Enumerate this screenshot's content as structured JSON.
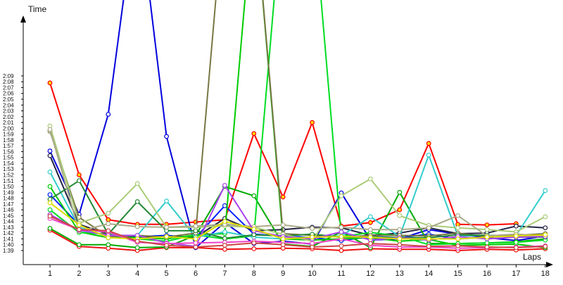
{
  "chart_data": {
    "type": "line",
    "title": "",
    "xlabel": "Laps",
    "ylabel": "Time",
    "x": [
      1,
      2,
      3,
      4,
      5,
      6,
      7,
      8,
      9,
      10,
      11,
      12,
      13,
      14,
      15,
      16,
      17,
      18
    ],
    "x_tick_labels": [
      "1",
      "2",
      "3",
      "4",
      "5",
      "6",
      "7",
      "8",
      "9",
      "10",
      "11",
      "12",
      "13",
      "14",
      "15",
      "16",
      "17",
      "18"
    ],
    "y_unit": "seconds",
    "y_tick_values": [
      99,
      100,
      101,
      102,
      103,
      104,
      105,
      106,
      107,
      108,
      109,
      110,
      111,
      112,
      113,
      114,
      115,
      116,
      117,
      118,
      119,
      120,
      121,
      122,
      123,
      124,
      125,
      126,
      127,
      128,
      129
    ],
    "y_tick_labels": [
      "1:39",
      "1:40",
      "1:41",
      "1:42",
      "1:43",
      "1:44",
      "1:45",
      "1:46",
      "1:47",
      "1:48",
      "1:49",
      "1:50",
      "1:51",
      "1:52",
      "1:53",
      "1:54",
      "1:55",
      "1:56",
      "1:57",
      "1:58",
      "1:59",
      "2:00",
      "2:01",
      "2:02",
      "2:03",
      "2:04",
      "2:05",
      "2:06",
      "2:07",
      "2:08",
      "2:09"
    ],
    "ylim": [
      98,
      133
    ],
    "legend": "none",
    "grid": false,
    "series": [
      {
        "color": "#ff0000",
        "marker": "#ffd700",
        "values": [
          127.8,
          112.0,
          104.3,
          103.5,
          103.5,
          103.9,
          104.3,
          119.1,
          108.2,
          121.0,
          103.2,
          103.8,
          106.0,
          117.4,
          103.5,
          103.4,
          103.6,
          null
        ]
      },
      {
        "color": "#ee1111",
        "marker": "#ffffff",
        "values": [
          102.5,
          99.7,
          99.4,
          99.0,
          99.5,
          99.5,
          99.2,
          99.3,
          99.4,
          99.3,
          99.0,
          99.3,
          99.2,
          99.2,
          99.0,
          99.2,
          99.1,
          99.3
        ]
      },
      {
        "color": "#0000dd",
        "marker": "#ffffff",
        "values": [
          116.1,
          105.2,
          122.4,
          160.0,
          118.6,
          99.5,
          103.8,
          100.2,
          100.6,
          100.1,
          108.9,
          100.8,
          101.0,
          102.6,
          101.8,
          101.2,
          100.7,
          101.5
        ]
      },
      {
        "color": "#0022ff",
        "marker": "#ffffff",
        "values": [
          108.6,
          103.4,
          101.2,
          101.4,
          101.6,
          101.2,
          106.7,
          101.8,
          101.5,
          101.2,
          100.7,
          101.4,
          101.2,
          101.8,
          101.0,
          101.3,
          101.6,
          101.5
        ]
      },
      {
        "color": "#222244",
        "marker": "#ffffff",
        "values": [
          115.3,
          103.5,
          101.8,
          101.2,
          101.4,
          101.3,
          104.5,
          102.4,
          102.6,
          103.0,
          102.9,
          101.6,
          102.0,
          102.9,
          101.9,
          102.0,
          103.2,
          102.9
        ]
      },
      {
        "color": "#00aa00",
        "marker": "#ffffff",
        "values": [
          102.8,
          100.0,
          100.0,
          99.5,
          99.6,
          101.6,
          110.0,
          108.4,
          100.1,
          99.7,
          102.2,
          99.5,
          109.0,
          100.2,
          100.2,
          100.3,
          100.5,
          101.0
        ]
      },
      {
        "color": "#00cc00",
        "marker": "#ffffff",
        "values": [
          110.0,
          102.2,
          101.2,
          101.2,
          101.0,
          101.7,
          101.9,
          160.0,
          101.0,
          100.8,
          101.0,
          101.2,
          100.6,
          100.9,
          99.9,
          100.0,
          100.1,
          99.5
        ]
      },
      {
        "color": "#00dd22",
        "marker": "#ffffff",
        "values": [
          106.0,
          102.1,
          101.8,
          101.0,
          100.6,
          101.7,
          101.0,
          101.5,
          160.0,
          160.0,
          101.4,
          102.1,
          101.5,
          100.0,
          100.2,
          100.3,
          100.4,
          100.8
        ]
      },
      {
        "color": "#33cccc",
        "marker": "#ffffff",
        "values": [
          112.5,
          103.0,
          101.4,
          101.6,
          107.5,
          101.3,
          102.2,
          101.3,
          101.0,
          101.3,
          101.5,
          104.8,
          101.4,
          115.4,
          101.5,
          101.6,
          101.6,
          109.3
        ]
      },
      {
        "color": "#777744",
        "marker": "#ffffff",
        "values": [
          119.5,
          104.7,
          101.4,
          101.6,
          101.3,
          102.0,
          160.0,
          160.0,
          101.9,
          101.6,
          101.3,
          101.6,
          101.6,
          101.5,
          102.0,
          101.4,
          101.6,
          101.9
        ]
      },
      {
        "color": "#228833",
        "marker": "#ffffff",
        "values": [
          107.8,
          111.0,
          101.8,
          107.4,
          102.4,
          102.4,
          101.1,
          101.7,
          101.5,
          101.8,
          101.3,
          101.3,
          101.2,
          101.2,
          101.7,
          101.6,
          101.3,
          101.3
        ]
      },
      {
        "color": "#aacc77",
        "marker": "#ffffff",
        "values": [
          120.4,
          103.7,
          105.4,
          110.5,
          103.0,
          103.0,
          103.2,
          103.0,
          101.8,
          100.6,
          108.4,
          111.3,
          105.0,
          103.3,
          102.9,
          102.6,
          102.2,
          104.8
        ]
      },
      {
        "color": "#aaaa88",
        "marker": "#ffffff",
        "values": [
          119.8,
          102.3,
          103.6,
          103.1,
          103.0,
          103.2,
          103.5,
          103.1,
          103.4,
          102.8,
          103.0,
          102.6,
          102.6,
          102.9,
          105.0,
          101.5,
          101.8,
          101.5
        ]
      },
      {
        "color": "#aa44ee",
        "marker": "#ffffff",
        "values": [
          105.2,
          102.5,
          101.6,
          101.6,
          100.3,
          99.7,
          110.2,
          102.4,
          101.4,
          101.0,
          102.2,
          100.8,
          101.2,
          100.8,
          101.4,
          101.0,
          101.3,
          101.4
        ]
      },
      {
        "color": "#ee44cc",
        "marker": "#ffffff",
        "values": [
          104.5,
          102.6,
          102.2,
          100.4,
          100.2,
          100.3,
          100.4,
          100.6,
          100.4,
          100.2,
          101.0,
          99.9,
          99.6,
          99.6,
          99.4,
          99.5,
          99.6,
          99.8
        ]
      },
      {
        "color": "#dddd00",
        "marker": "#ffffff",
        "values": [
          107.2,
          103.4,
          101.2,
          101.0,
          101.4,
          101.0,
          104.0,
          102.7,
          101.0,
          101.3,
          101.4,
          101.3,
          101.0,
          101.0,
          101.0,
          101.3,
          101.5,
          101.7
        ]
      },
      {
        "color": "#cc4444",
        "marker": "#ffffff",
        "values": [
          104.9,
          102.6,
          102.4,
          100.6,
          99.9,
          99.6,
          99.9,
          100.3,
          100.0,
          99.6,
          99.8,
          100.2,
          100.0,
          99.7,
          99.8,
          99.6,
          99.5,
          99.7
        ]
      }
    ]
  }
}
